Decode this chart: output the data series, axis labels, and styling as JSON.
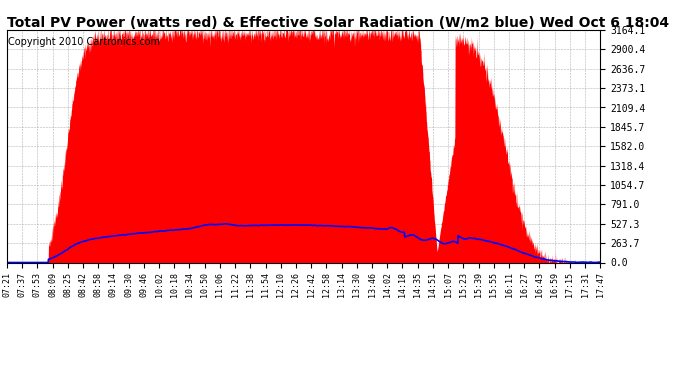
{
  "title": "Total PV Power (watts red) & Effective Solar Radiation (W/m2 blue) Wed Oct 6 18:04",
  "copyright": "Copyright 2010 Cartronics.com",
  "y_max": 3164.1,
  "y_ticks": [
    0.0,
    263.7,
    527.3,
    791.0,
    1054.7,
    1318.4,
    1582.0,
    1845.7,
    2109.4,
    2373.1,
    2636.7,
    2900.4,
    3164.1
  ],
  "background_color": "#ffffff",
  "fill_color": "#ff0000",
  "line_color": "#0000ff",
  "grid_color": "#aaaaaa",
  "title_fontsize": 10,
  "copyright_fontsize": 7,
  "x_labels": [
    "07:21",
    "07:37",
    "07:53",
    "08:09",
    "08:25",
    "08:42",
    "08:58",
    "09:14",
    "09:30",
    "09:46",
    "10:02",
    "10:18",
    "10:34",
    "10:50",
    "11:06",
    "11:22",
    "11:38",
    "11:54",
    "12:10",
    "12:26",
    "12:42",
    "12:58",
    "13:14",
    "13:30",
    "13:46",
    "14:02",
    "14:18",
    "14:35",
    "14:51",
    "15:07",
    "15:23",
    "15:39",
    "15:55",
    "16:11",
    "16:27",
    "16:43",
    "16:59",
    "17:15",
    "17:31",
    "17:47"
  ]
}
